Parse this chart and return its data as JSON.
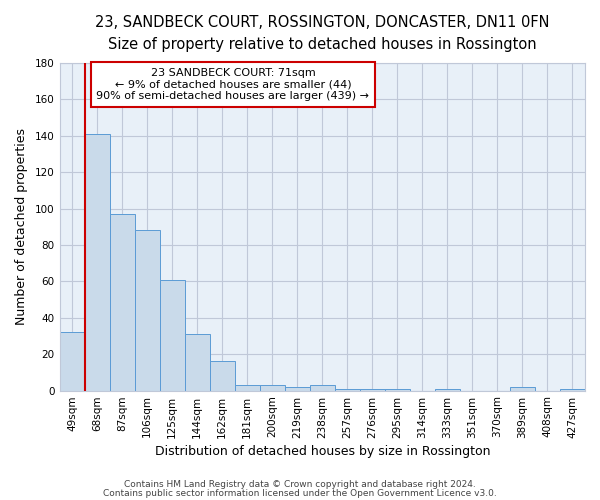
{
  "title": "23, SANDBECK COURT, ROSSINGTON, DONCASTER, DN11 0FN",
  "subtitle": "Size of property relative to detached houses in Rossington",
  "xlabel": "Distribution of detached houses by size in Rossington",
  "ylabel": "Number of detached properties",
  "bin_labels": [
    "49sqm",
    "68sqm",
    "87sqm",
    "106sqm",
    "125sqm",
    "144sqm",
    "162sqm",
    "181sqm",
    "200sqm",
    "219sqm",
    "238sqm",
    "257sqm",
    "276sqm",
    "295sqm",
    "314sqm",
    "333sqm",
    "351sqm",
    "370sqm",
    "389sqm",
    "408sqm",
    "427sqm"
  ],
  "bar_heights": [
    32,
    141,
    97,
    88,
    61,
    31,
    16,
    3,
    3,
    2,
    3,
    1,
    1,
    1,
    0,
    1,
    0,
    0,
    2,
    0,
    1
  ],
  "bar_color": "#c9daea",
  "bar_edge_color": "#5b9bd5",
  "vline_color": "#cc0000",
  "ylim": [
    0,
    180
  ],
  "yticks": [
    0,
    20,
    40,
    60,
    80,
    100,
    120,
    140,
    160,
    180
  ],
  "annotation_line1": "23 SANDBECK COURT: 71sqm",
  "annotation_line2": "← 9% of detached houses are smaller (44)",
  "annotation_line3": "90% of semi-detached houses are larger (439) →",
  "footer1": "Contains HM Land Registry data © Crown copyright and database right 2024.",
  "footer2": "Contains public sector information licensed under the Open Government Licence v3.0.",
  "background_color": "#ffffff",
  "grid_color": "#c0c8d8",
  "title_fontsize": 10.5,
  "subtitle_fontsize": 9.5,
  "axis_label_fontsize": 9,
  "tick_fontsize": 7.5,
  "footer_fontsize": 6.5,
  "annot_fontsize": 8
}
